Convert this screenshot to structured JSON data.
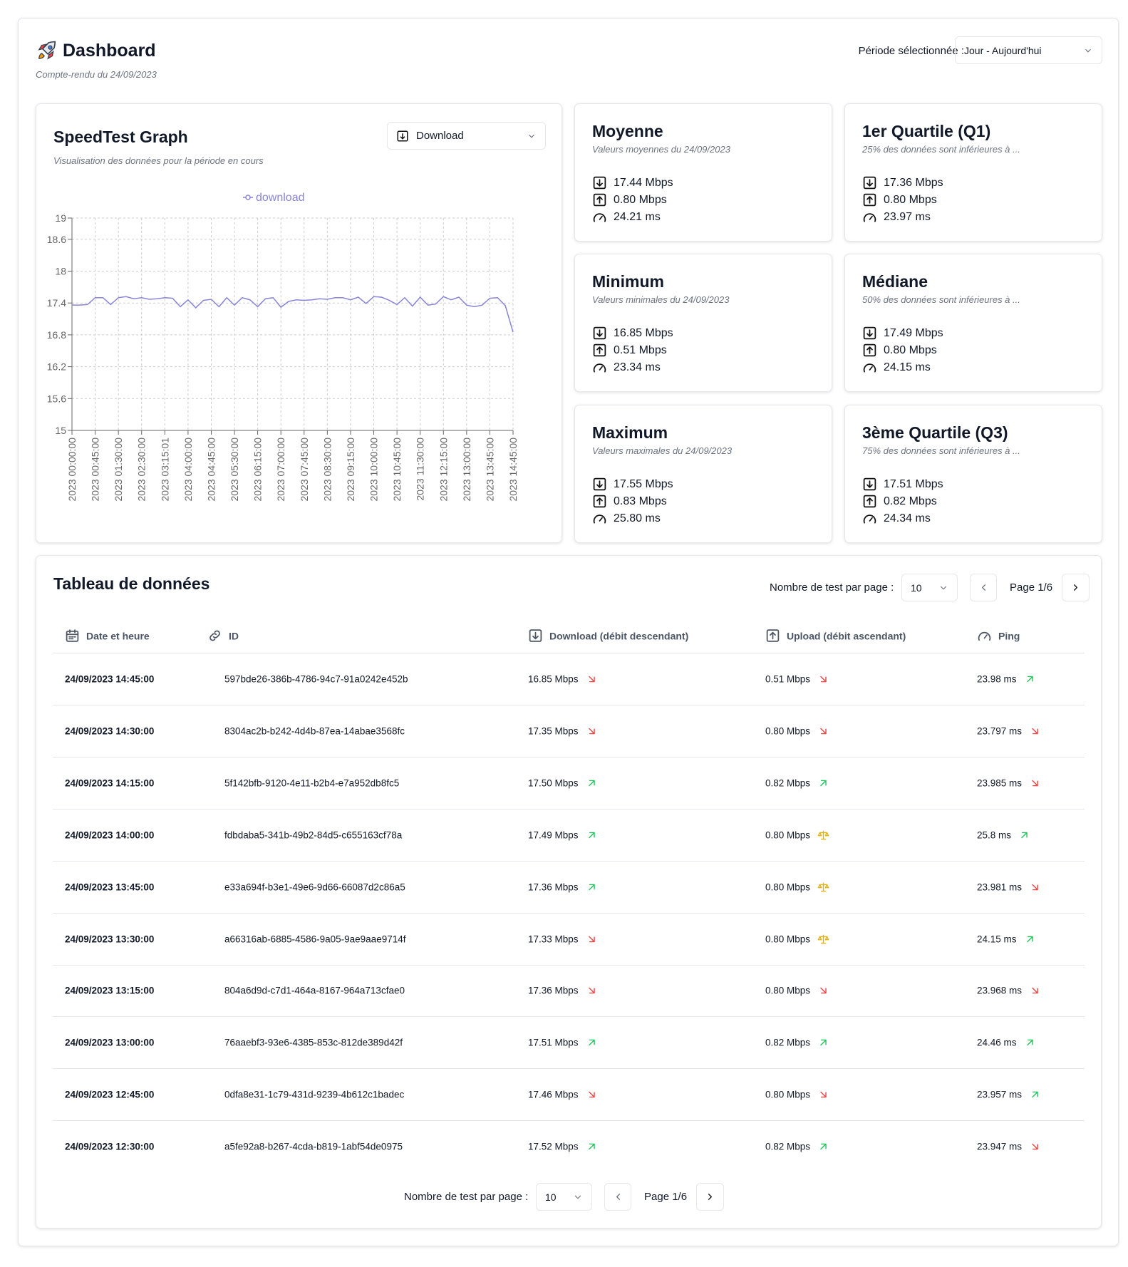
{
  "header": {
    "title": "Dashboard",
    "subtitle": "Compte-rendu du 24/09/2023",
    "period_label": "Période sélectionnée :",
    "period_value": "Jour - Aujourd'hui"
  },
  "graph": {
    "title": "SpeedTest Graph",
    "subtitle": "Visualisation des données pour la période en cours",
    "select": "Download",
    "chart_data": {
      "type": "line",
      "categories": [
        "2023 00:00:00",
        null,
        null,
        "2023 00:45:00",
        null,
        null,
        "2023 01:30:00",
        null,
        null,
        "2023 02:30:00",
        null,
        null,
        "2023 03:15:01",
        null,
        null,
        "2023 04:00:00",
        null,
        null,
        "2023 04:45:00",
        null,
        null,
        "2023 05:30:00",
        null,
        null,
        "2023 06:15:00",
        null,
        null,
        "2023 07:00:00",
        null,
        null,
        "2023 07:45:00",
        null,
        null,
        "2023 08:30:00",
        null,
        null,
        "2023 09:15:00",
        null,
        null,
        "2023 10:00:00",
        null,
        null,
        "2023 10:45:00",
        null,
        null,
        "2023 11:30:00",
        null,
        null,
        "2023 12:15:00",
        null,
        null,
        "2023 13:00:00",
        null,
        null,
        "2023 13:45:00",
        null,
        null,
        "2023 14:45:00"
      ],
      "series": [
        {
          "name": "download",
          "color": "#8884d8",
          "values": [
            17.36,
            17.36,
            17.37,
            17.5,
            17.5,
            17.37,
            17.5,
            17.52,
            17.48,
            17.5,
            17.47,
            17.48,
            17.5,
            17.49,
            17.33,
            17.46,
            17.31,
            17.45,
            17.47,
            17.33,
            17.5,
            17.36,
            17.5,
            17.46,
            17.33,
            17.48,
            17.5,
            17.32,
            17.43,
            17.46,
            17.45,
            17.46,
            17.48,
            17.47,
            17.5,
            17.5,
            17.46,
            17.51,
            17.39,
            17.52,
            17.51,
            17.45,
            17.37,
            17.5,
            17.34,
            17.51,
            17.36,
            17.38,
            17.52,
            17.46,
            17.51,
            17.36,
            17.33,
            17.36,
            17.49,
            17.5,
            17.35,
            16.85
          ]
        }
      ],
      "ylim": [
        15,
        19
      ],
      "yticks": [
        15,
        15.6,
        16.2,
        16.8,
        17.4,
        18,
        18.6,
        19
      ],
      "grid": true
    }
  },
  "stats": [
    {
      "title": "Moyenne",
      "subtitle": "Valeurs moyennes du 24/09/2023",
      "download": "17.44 Mbps",
      "upload": "0.80 Mbps",
      "ping": "24.21 ms"
    },
    {
      "title": "1er Quartile (Q1)",
      "subtitle": "25% des données sont inférieures à ...",
      "download": "17.36 Mbps",
      "upload": "0.80 Mbps",
      "ping": "23.97 ms"
    },
    {
      "title": "Minimum",
      "subtitle": "Valeurs minimales du 24/09/2023",
      "download": "16.85 Mbps",
      "upload": "0.51 Mbps",
      "ping": "23.34 ms"
    },
    {
      "title": "Médiane",
      "subtitle": "50% des données sont inférieures à ...",
      "download": "17.49 Mbps",
      "upload": "0.80 Mbps",
      "ping": "24.15 ms"
    },
    {
      "title": "Maximum",
      "subtitle": "Valeurs maximales du 24/09/2023",
      "download": "17.55 Mbps",
      "upload": "0.83 Mbps",
      "ping": "25.80 ms"
    },
    {
      "title": "3ème Quartile (Q3)",
      "subtitle": "75% des données sont inférieures à ...",
      "download": "17.51 Mbps",
      "upload": "0.82 Mbps",
      "ping": "24.34 ms"
    }
  ],
  "table": {
    "title": "Tableau de données",
    "per_page_label": "Nombre de test par page :",
    "per_page": "10",
    "page": "Page 1/6",
    "columns": [
      "Date et heure",
      "ID",
      "Download (débit descendant)",
      "Upload (débit ascendant)",
      "Ping"
    ],
    "rows": [
      {
        "date": "24/09/2023 14:45:00",
        "id": "597bde26-386b-4786-94c7-91a0242e452b",
        "download": "16.85 Mbps",
        "upload": "0.51 Mbps",
        "ping": "23.98 ms",
        "trends": [
          "down",
          "down",
          "up"
        ]
      },
      {
        "date": "24/09/2023 14:30:00",
        "id": "8304ac2b-b242-4d4b-87ea-14abae3568fc",
        "download": "17.35 Mbps",
        "upload": "0.80 Mbps",
        "ping": "23.797 ms",
        "trends": [
          "down",
          "down",
          "down"
        ]
      },
      {
        "date": "24/09/2023 14:15:00",
        "id": "5f142bfb-9120-4e11-b2b4-e7a952db8fc5",
        "download": "17.50 Mbps",
        "upload": "0.82 Mbps",
        "ping": "23.985 ms",
        "trends": [
          "up",
          "up",
          "down"
        ]
      },
      {
        "date": "24/09/2023 14:00:00",
        "id": "fdbdaba5-341b-49b2-84d5-c655163cf78a",
        "download": "17.49 Mbps",
        "upload": "0.80 Mbps",
        "ping": "25.8 ms",
        "trends": [
          "up",
          "equal",
          "up"
        ]
      },
      {
        "date": "24/09/2023 13:45:00",
        "id": "e33a694f-b3e1-49e6-9d66-66087d2c86a5",
        "download": "17.36 Mbps",
        "upload": "0.80 Mbps",
        "ping": "23.981 ms",
        "trends": [
          "up",
          "equal",
          "down"
        ]
      },
      {
        "date": "24/09/2023 13:30:00",
        "id": "a66316ab-6885-4586-9a05-9ae9aae9714f",
        "download": "17.33 Mbps",
        "upload": "0.80 Mbps",
        "ping": "24.15 ms",
        "trends": [
          "down",
          "equal",
          "up"
        ]
      },
      {
        "date": "24/09/2023 13:15:00",
        "id": "804a6d9d-c7d1-464a-8167-964a713cfae0",
        "download": "17.36 Mbps",
        "upload": "0.80 Mbps",
        "ping": "23.968 ms",
        "trends": [
          "down",
          "down",
          "down"
        ]
      },
      {
        "date": "24/09/2023 13:00:00",
        "id": "76aaebf3-93e6-4385-853c-812de389d42f",
        "download": "17.51 Mbps",
        "upload": "0.82 Mbps",
        "ping": "24.46 ms",
        "trends": [
          "up",
          "up",
          "up"
        ]
      },
      {
        "date": "24/09/2023 12:45:00",
        "id": "0dfa8e31-1c79-431d-9239-4b612c1badec",
        "download": "17.46 Mbps",
        "upload": "0.80 Mbps",
        "ping": "23.957 ms",
        "trends": [
          "down",
          "down",
          "up"
        ]
      },
      {
        "date": "24/09/2023 12:30:00",
        "id": "a5fe92a8-b267-4cda-b819-1abf54de0975",
        "download": "17.52 Mbps",
        "upload": "0.82 Mbps",
        "ping": "23.947 ms",
        "trends": [
          "up",
          "up",
          "down"
        ]
      }
    ]
  }
}
